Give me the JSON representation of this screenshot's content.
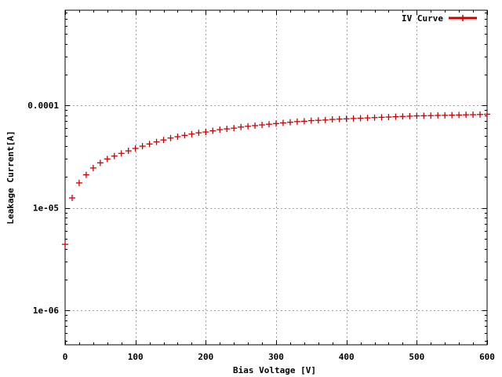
{
  "chart_data": {
    "type": "scatter",
    "title": "",
    "xlabel": "Bias Voltage [V]",
    "ylabel": "Leakage Current[A]",
    "xlim": [
      0,
      600
    ],
    "ylim": [
      4.6e-07,
      0.00085
    ],
    "yscale": "log",
    "grid": true,
    "legend_position": "top-right",
    "x_ticks": [
      {
        "value": 0,
        "label": "0"
      },
      {
        "value": 100,
        "label": "100"
      },
      {
        "value": 200,
        "label": "200"
      },
      {
        "value": 300,
        "label": "300"
      },
      {
        "value": 400,
        "label": "400"
      },
      {
        "value": 500,
        "label": "500"
      },
      {
        "value": 600,
        "label": "600"
      }
    ],
    "y_ticks": [
      {
        "value": 1e-06,
        "label": "1e-06"
      },
      {
        "value": 1e-05,
        "label": "1e-05"
      },
      {
        "value": 0.0001,
        "label": "0.0001"
      }
    ],
    "series": [
      {
        "name": "IV Curve",
        "color": "#cc0000",
        "marker": "plus",
        "x": [
          0,
          10,
          20,
          30,
          40,
          50,
          60,
          70,
          80,
          90,
          100,
          110,
          120,
          130,
          140,
          150,
          160,
          170,
          180,
          190,
          200,
          210,
          220,
          230,
          240,
          250,
          260,
          270,
          280,
          290,
          300,
          310,
          320,
          330,
          340,
          350,
          360,
          370,
          380,
          390,
          400,
          410,
          420,
          430,
          440,
          450,
          460,
          470,
          480,
          490,
          500,
          510,
          520,
          530,
          540,
          550,
          560,
          570,
          580,
          590,
          600
        ],
        "y": [
          4.4e-06,
          1.25e-05,
          1.75e-05,
          2.1e-05,
          2.45e-05,
          2.75e-05,
          3e-05,
          3.2e-05,
          3.4e-05,
          3.6e-05,
          3.8e-05,
          4e-05,
          4.2e-05,
          4.4e-05,
          4.6e-05,
          4.8e-05,
          4.95e-05,
          5.1e-05,
          5.25e-05,
          5.4e-05,
          5.5e-05,
          5.65e-05,
          5.8e-05,
          5.9e-05,
          6e-05,
          6.15e-05,
          6.25e-05,
          6.35e-05,
          6.45e-05,
          6.55e-05,
          6.65e-05,
          6.75e-05,
          6.85e-05,
          6.95e-05,
          7e-05,
          7.1e-05,
          7.15e-05,
          7.2e-05,
          7.3e-05,
          7.35e-05,
          7.4e-05,
          7.45e-05,
          7.5e-05,
          7.55e-05,
          7.6e-05,
          7.65e-05,
          7.7e-05,
          7.75e-05,
          7.8e-05,
          7.85e-05,
          7.9e-05,
          7.92e-05,
          7.95e-05,
          7.98e-05,
          8e-05,
          8.03e-05,
          8.06e-05,
          8.1e-05,
          8.12e-05,
          8.15e-05,
          8.2e-05
        ]
      }
    ]
  }
}
